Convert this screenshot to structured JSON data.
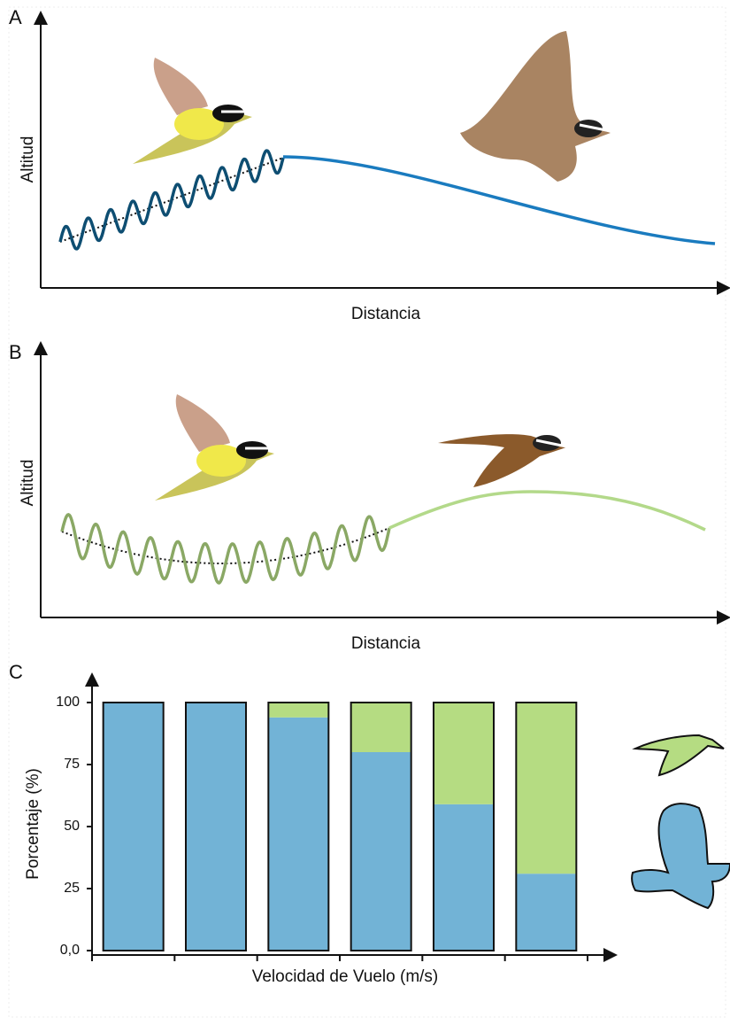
{
  "panel_a": {
    "label": "A",
    "y_label": "Altitud",
    "x_label": "Distancia"
  },
  "panel_b": {
    "label": "B",
    "y_label": "Altitud",
    "x_label": "Distancia"
  },
  "chart_data": {
    "type": "stacked_bar",
    "label": "C",
    "y_label": "Porcentaje (%)",
    "x_label": "Velocidad de Vuelo (m/s)",
    "categories": [
      null,
      null,
      null,
      null,
      null,
      null
    ],
    "series": [
      {
        "color": "#72b3d6",
        "values": [
          100,
          100,
          94,
          80,
          59,
          31
        ]
      },
      {
        "color": "#b5dc82",
        "values": [
          0,
          0,
          6,
          20,
          41,
          69
        ]
      }
    ],
    "ylim": [
      0,
      100
    ],
    "yticks": [
      {
        "value": 0,
        "label": "0,0"
      },
      25,
      50,
      75,
      100
    ]
  }
}
